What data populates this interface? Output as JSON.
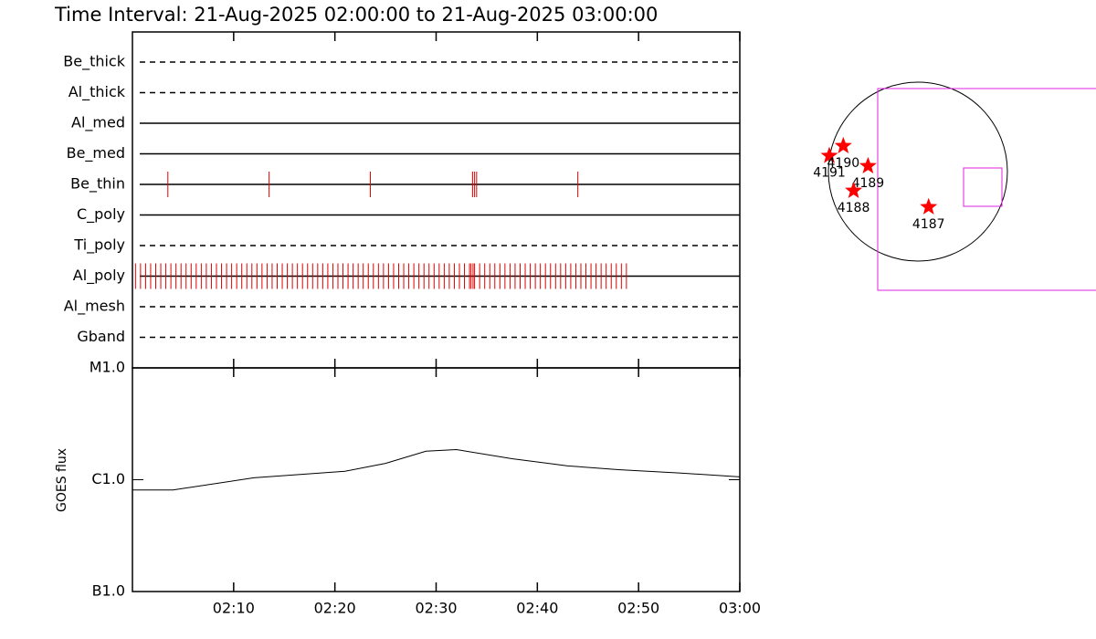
{
  "chart_data": [
    {
      "type": "event",
      "title": "Time Interval: 21-Aug-2025 02:00:00 to 21-Aug-2025 03:00:00",
      "categories": [
        "Be_thick",
        "Al_thick",
        "Al_med",
        "Be_med",
        "Be_thin",
        "C_poly",
        "Ti_poly",
        "Al_poly",
        "Al_mesh",
        "Gband"
      ],
      "line_styles": [
        "dashed",
        "dashed",
        "solid",
        "solid",
        "solid",
        "solid",
        "dashed",
        "solid",
        "dashed",
        "dashed"
      ],
      "events": [
        [],
        [],
        [],
        [],
        [
          3.5,
          13.5,
          23.5,
          33.6,
          33.8,
          34.0,
          44.0
        ],
        [],
        [],
        [
          0.3,
          0.8,
          1.3,
          1.8,
          2.3,
          2.8,
          3.3,
          3.8,
          4.3,
          4.8,
          5.3,
          5.8,
          6.3,
          6.8,
          7.3,
          7.8,
          8.3,
          8.8,
          9.3,
          9.8,
          10.3,
          10.8,
          11.3,
          11.8,
          12.3,
          12.8,
          13.3,
          13.8,
          14.3,
          14.8,
          15.3,
          15.8,
          16.3,
          16.8,
          17.3,
          17.8,
          18.3,
          18.8,
          19.3,
          19.8,
          20.3,
          20.8,
          21.3,
          21.8,
          22.3,
          22.8,
          23.3,
          23.8,
          24.3,
          24.8,
          25.3,
          25.8,
          26.3,
          26.8,
          27.3,
          27.8,
          28.3,
          28.8,
          29.3,
          29.8,
          30.3,
          30.8,
          31.3,
          31.8,
          32.3,
          32.8,
          33.3,
          33.45,
          33.65,
          33.8,
          34.3,
          34.8,
          35.3,
          35.8,
          36.3,
          36.8,
          37.3,
          37.8,
          38.3,
          38.8,
          39.3,
          39.8,
          40.3,
          40.8,
          41.3,
          41.8,
          42.3,
          42.8,
          43.3,
          43.8,
          44.3,
          44.8,
          45.3,
          45.8,
          46.3,
          46.8,
          47.3,
          47.8,
          48.3,
          48.8
        ],
        [],
        []
      ],
      "color": "#e00000",
      "xlim": [
        0,
        60
      ]
    },
    {
      "type": "line",
      "ylabel": "GOES flux",
      "x": [
        0,
        4,
        12,
        21,
        25,
        29,
        32,
        37.5,
        43,
        48,
        54,
        60
      ],
      "values": [
        8.1e-07,
        8.1e-07,
        1.04e-06,
        1.19e-06,
        1.4e-06,
        1.8e-06,
        1.86e-06,
        1.54e-06,
        1.33e-06,
        1.23e-06,
        1.15e-06,
        1.06e-06
      ],
      "color": "#000000",
      "xlim": [
        0,
        60
      ],
      "xticks": [
        {
          "value": 10,
          "label": "02:10"
        },
        {
          "value": 20,
          "label": "02:20"
        },
        {
          "value": 30,
          "label": "02:30"
        },
        {
          "value": 40,
          "label": "02:40"
        },
        {
          "value": 50,
          "label": "02:50"
        },
        {
          "value": 60,
          "label": "03:00"
        }
      ],
      "ylim": [
        1e-07,
        1e-05
      ],
      "yticks": [
        {
          "value": 1e-07,
          "label": "B1.0"
        },
        {
          "value": 1e-06,
          "label": "C1.0"
        },
        {
          "value": 1e-05,
          "label": "M1.0"
        }
      ],
      "log_scale": true
    },
    {
      "type": "scatter",
      "x": [
        -950,
        -800,
        -535,
        -690,
        115
      ],
      "values": [
        170,
        275,
        60,
        -205,
        -380
      ],
      "labels": [
        "4191",
        "4190",
        "4189",
        "4188",
        "4187"
      ],
      "color": "#ff0000"
    }
  ]
}
